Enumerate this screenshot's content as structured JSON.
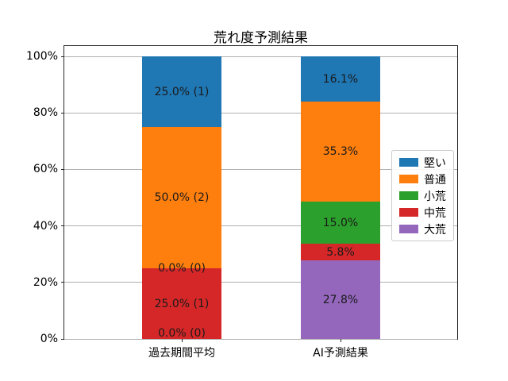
{
  "chart_data": {
    "type": "bar",
    "stacked": true,
    "title": "荒れ度予測結果",
    "categories": [
      "過去期間平均",
      "AI予測結果"
    ],
    "series": [
      {
        "name": "大荒",
        "color": "#9467bd",
        "values": [
          0.0,
          27.8
        ],
        "labels": [
          "0.0% (0)",
          "27.8%"
        ]
      },
      {
        "name": "中荒",
        "color": "#d62728",
        "values": [
          25.0,
          5.8
        ],
        "labels": [
          "25.0% (1)",
          "5.8%"
        ]
      },
      {
        "name": "小荒",
        "color": "#2ca02c",
        "values": [
          0.0,
          15.0
        ],
        "labels": [
          "0.0% (0)",
          "15.0%"
        ]
      },
      {
        "name": "普通",
        "color": "#ff7f0e",
        "values": [
          50.0,
          35.3
        ],
        "labels": [
          "50.0% (2)",
          "35.3%"
        ]
      },
      {
        "name": "堅い",
        "color": "#1f77b4",
        "values": [
          25.0,
          16.1
        ],
        "labels": [
          "25.0% (1)",
          "16.1%"
        ]
      }
    ],
    "legend": [
      "堅い",
      "普通",
      "小荒",
      "中荒",
      "大荒"
    ],
    "legend_position": "center right",
    "y_ticks": [
      "0%",
      "20%",
      "40%",
      "60%",
      "80%",
      "100%"
    ],
    "ylim": [
      0,
      104
    ],
    "grid": true,
    "grid_color": "#b0b0b0",
    "spine_color": "#262626",
    "label_text_color": "#1a1a1a"
  }
}
